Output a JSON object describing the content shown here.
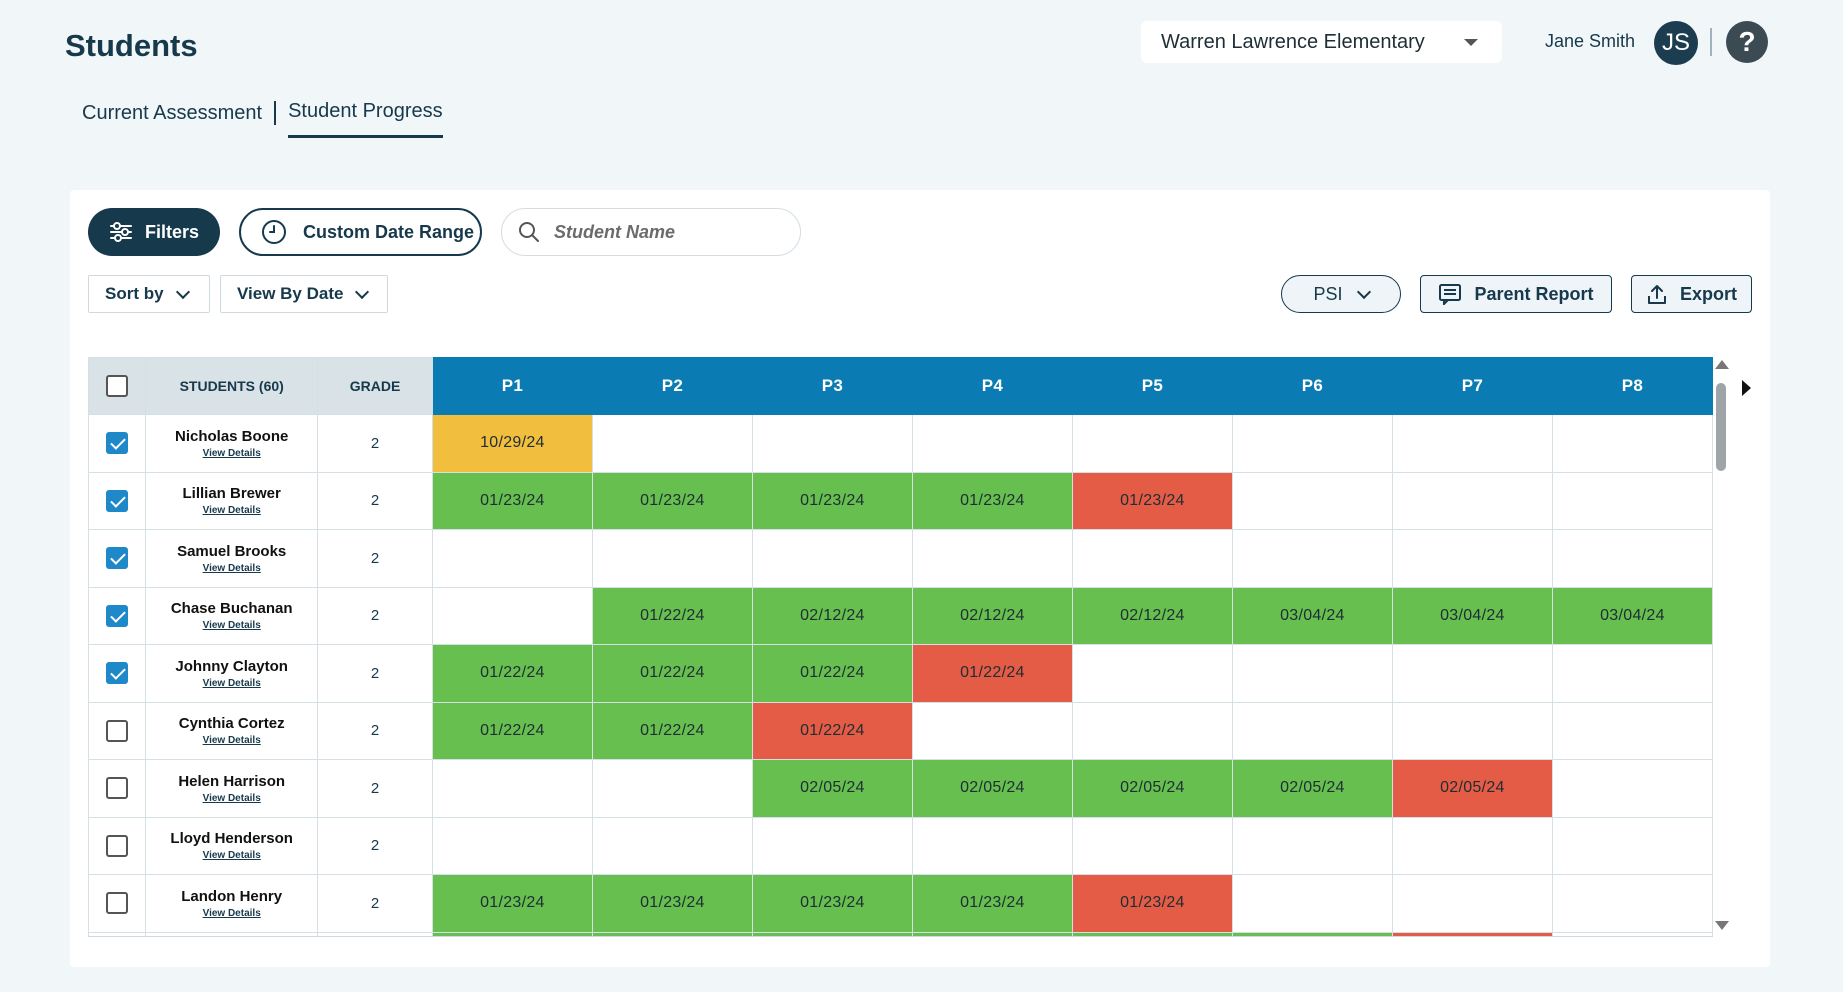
{
  "page": {
    "title": "Students"
  },
  "header": {
    "school": "Warren Lawrence Elementary",
    "user_name": "Jane Smith",
    "avatar_initials": "JS",
    "help_glyph": "?"
  },
  "tabs": [
    {
      "label": "Current Assessment",
      "active": false
    },
    {
      "label": "Student Progress",
      "active": true
    }
  ],
  "toolbar": {
    "filters_label": "Filters",
    "date_range_label": "Custom Date Range",
    "search_placeholder": "Student Name",
    "sort_label": "Sort by",
    "view_label": "View By Date",
    "psi_label": "PSI",
    "parent_report_label": "Parent Report",
    "export_label": "Export"
  },
  "table": {
    "students_header": "STUDENTS (60)",
    "grade_header": "GRADE",
    "period_headers": [
      "P1",
      "P2",
      "P3",
      "P4",
      "P5",
      "P6",
      "P7",
      "P8"
    ],
    "view_details_label": "View Details",
    "rows": [
      {
        "name": "Nicholas Boone",
        "grade": "2",
        "checked": true,
        "cells": [
          [
            "10/29/24",
            "orange"
          ],
          [
            "",
            ""
          ],
          [
            "",
            ""
          ],
          [
            "",
            ""
          ],
          [
            "",
            ""
          ],
          [
            "",
            ""
          ],
          [
            "",
            ""
          ],
          [
            "",
            ""
          ]
        ]
      },
      {
        "name": "Lillian Brewer",
        "grade": "2",
        "checked": true,
        "cells": [
          [
            "01/23/24",
            "green"
          ],
          [
            "01/23/24",
            "green"
          ],
          [
            "01/23/24",
            "green"
          ],
          [
            "01/23/24",
            "green"
          ],
          [
            "01/23/24",
            "red"
          ],
          [
            "",
            ""
          ],
          [
            "",
            ""
          ],
          [
            "",
            ""
          ]
        ]
      },
      {
        "name": "Samuel Brooks",
        "grade": "2",
        "checked": true,
        "cells": [
          [
            "",
            ""
          ],
          [
            "",
            ""
          ],
          [
            "",
            ""
          ],
          [
            "",
            ""
          ],
          [
            "",
            ""
          ],
          [
            "",
            ""
          ],
          [
            "",
            ""
          ],
          [
            "",
            ""
          ]
        ]
      },
      {
        "name": "Chase Buchanan",
        "grade": "2",
        "checked": true,
        "cells": [
          [
            "",
            ""
          ],
          [
            "01/22/24",
            "green"
          ],
          [
            "02/12/24",
            "green"
          ],
          [
            "02/12/24",
            "green"
          ],
          [
            "02/12/24",
            "green"
          ],
          [
            "03/04/24",
            "green"
          ],
          [
            "03/04/24",
            "green"
          ],
          [
            "03/04/24",
            "green"
          ]
        ]
      },
      {
        "name": "Johnny Clayton",
        "grade": "2",
        "checked": true,
        "cells": [
          [
            "01/22/24",
            "green"
          ],
          [
            "01/22/24",
            "green"
          ],
          [
            "01/22/24",
            "green"
          ],
          [
            "01/22/24",
            "red"
          ],
          [
            "",
            ""
          ],
          [
            "",
            ""
          ],
          [
            "",
            ""
          ],
          [
            "",
            ""
          ]
        ]
      },
      {
        "name": "Cynthia Cortez",
        "grade": "2",
        "checked": false,
        "cells": [
          [
            "01/22/24",
            "green"
          ],
          [
            "01/22/24",
            "green"
          ],
          [
            "01/22/24",
            "red"
          ],
          [
            "",
            ""
          ],
          [
            "",
            ""
          ],
          [
            "",
            ""
          ],
          [
            "",
            ""
          ],
          [
            "",
            ""
          ]
        ]
      },
      {
        "name": "Helen Harrison",
        "grade": "2",
        "checked": false,
        "cells": [
          [
            "",
            ""
          ],
          [
            "",
            ""
          ],
          [
            "02/05/24",
            "green"
          ],
          [
            "02/05/24",
            "green"
          ],
          [
            "02/05/24",
            "green"
          ],
          [
            "02/05/24",
            "green"
          ],
          [
            "02/05/24",
            "red"
          ],
          [
            "",
            ""
          ]
        ]
      },
      {
        "name": "Lloyd Henderson",
        "grade": "2",
        "checked": false,
        "cells": [
          [
            "",
            ""
          ],
          [
            "",
            ""
          ],
          [
            "",
            ""
          ],
          [
            "",
            ""
          ],
          [
            "",
            ""
          ],
          [
            "",
            ""
          ],
          [
            "",
            ""
          ],
          [
            "",
            ""
          ]
        ]
      },
      {
        "name": "Landon Henry",
        "grade": "2",
        "checked": false,
        "cells": [
          [
            "01/23/24",
            "green"
          ],
          [
            "01/23/24",
            "green"
          ],
          [
            "01/23/24",
            "green"
          ],
          [
            "01/23/24",
            "green"
          ],
          [
            "01/23/24",
            "red"
          ],
          [
            "",
            ""
          ],
          [
            "",
            ""
          ],
          [
            "",
            ""
          ]
        ]
      },
      {
        "name": "",
        "grade": "",
        "checked": false,
        "cells": [
          [
            "",
            "green"
          ],
          [
            "",
            "green"
          ],
          [
            "",
            "green"
          ],
          [
            "",
            "green"
          ],
          [
            "",
            "green"
          ],
          [
            "",
            "green"
          ],
          [
            "",
            "red"
          ],
          [
            "",
            ""
          ]
        ]
      }
    ]
  }
}
